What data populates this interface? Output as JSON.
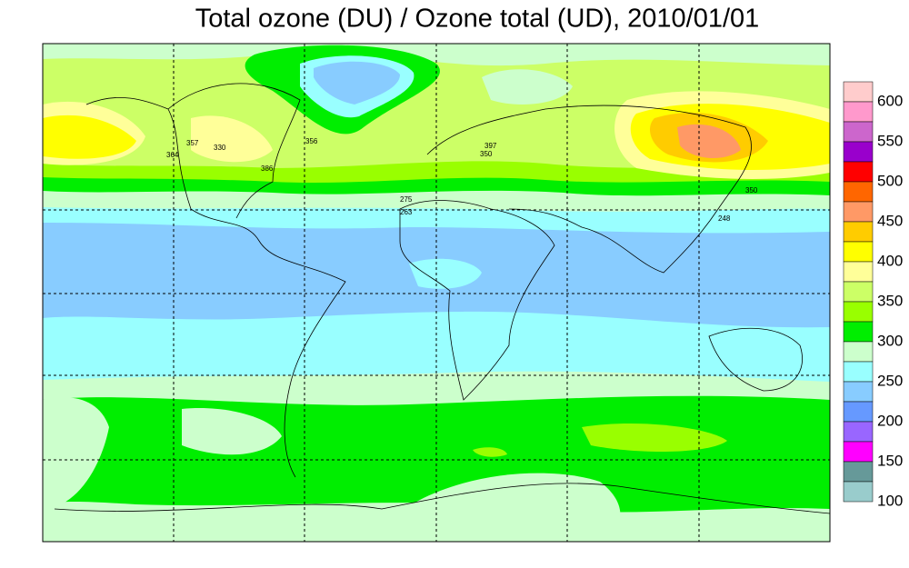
{
  "title": "Total ozone (DU) / Ozone total (UD), 2010/01/01",
  "colorbar": {
    "colors": [
      "#ffcccc",
      "#ff99cc",
      "#cc66cc",
      "#9900cc",
      "#ff0000",
      "#ff6600",
      "#ff9966",
      "#ffcc00",
      "#ffff00",
      "#ffff99",
      "#ccff66",
      "#99ff00",
      "#00ee00",
      "#ccffcc",
      "#99ffff",
      "#88ccff",
      "#6699ff",
      "#9966ff",
      "#ff00ff",
      "#669999",
      "#99cccc"
    ],
    "labels": [
      100,
      150,
      200,
      250,
      300,
      350,
      400,
      450,
      500,
      550,
      600
    ]
  },
  "station_labels": [
    "357",
    "364",
    "330",
    "386",
    "356",
    "275",
    "263",
    "397",
    "350",
    "350",
    "248"
  ]
}
